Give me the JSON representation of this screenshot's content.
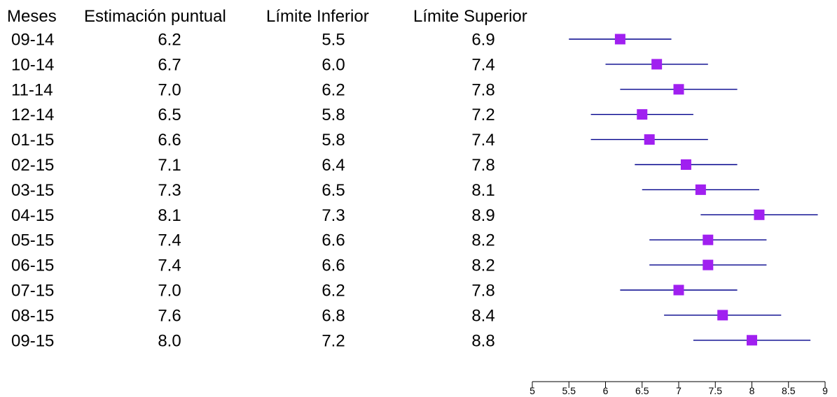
{
  "chart_data": {
    "type": "forest",
    "columns": [
      "Meses",
      "Estimación puntual",
      "Límite Inferior",
      "Límite Superior"
    ],
    "rows": [
      {
        "mes": "09-14",
        "est": "6.2",
        "lo": "5.5",
        "hi": "6.9"
      },
      {
        "mes": "10-14",
        "est": "6.7",
        "lo": "6.0",
        "hi": "7.4"
      },
      {
        "mes": "11-14",
        "est": "7.0",
        "lo": "6.2",
        "hi": "7.8"
      },
      {
        "mes": "12-14",
        "est": "6.5",
        "lo": "5.8",
        "hi": "7.2"
      },
      {
        "mes": "01-15",
        "est": "6.6",
        "lo": "5.8",
        "hi": "7.4"
      },
      {
        "mes": "02-15",
        "est": "7.1",
        "lo": "6.4",
        "hi": "7.8"
      },
      {
        "mes": "03-15",
        "est": "7.3",
        "lo": "6.5",
        "hi": "8.1"
      },
      {
        "mes": "04-15",
        "est": "8.1",
        "lo": "7.3",
        "hi": "8.9"
      },
      {
        "mes": "05-15",
        "est": "7.4",
        "lo": "6.6",
        "hi": "8.2"
      },
      {
        "mes": "06-15",
        "est": "7.4",
        "lo": "6.6",
        "hi": "8.2"
      },
      {
        "mes": "07-15",
        "est": "7.0",
        "lo": "6.2",
        "hi": "7.8"
      },
      {
        "mes": "08-15",
        "est": "7.6",
        "lo": "6.8",
        "hi": "8.4"
      },
      {
        "mes": "09-15",
        "est": "8.0",
        "lo": "7.2",
        "hi": "8.8"
      }
    ],
    "xlim": [
      5,
      9
    ],
    "xticks": [
      5,
      5.5,
      6,
      6.5,
      7,
      7.5,
      8,
      8.5,
      9
    ],
    "tick_labels": [
      "5",
      "5.5",
      "6",
      "6.5",
      "7",
      "7.5",
      "8",
      "8.5",
      "9"
    ],
    "grid": false,
    "point_color": "#a020f0",
    "line_color": "#00008b",
    "axis_color": "#000000"
  }
}
